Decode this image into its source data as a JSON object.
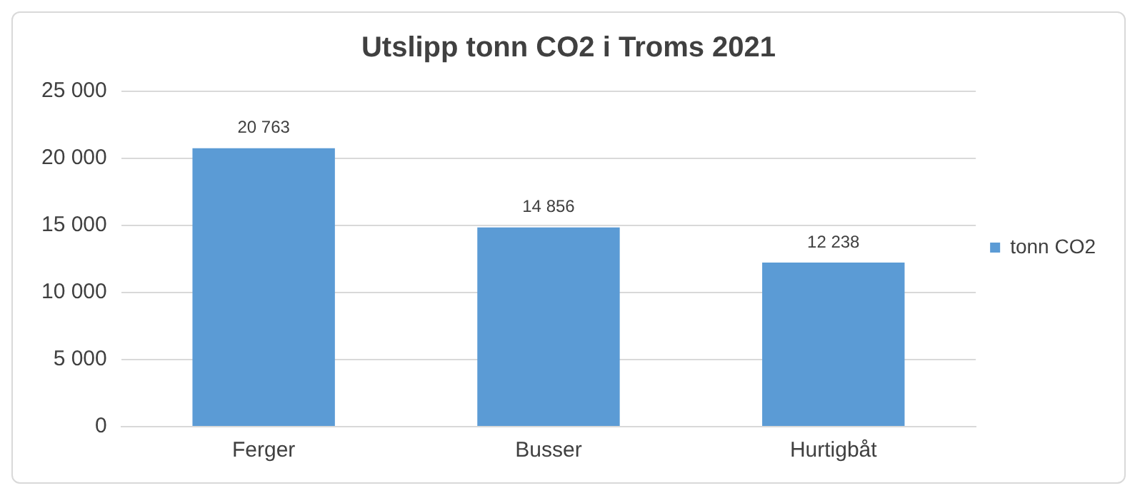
{
  "chart_data": {
    "type": "bar",
    "title": "Utslipp tonn CO2 i Troms 2021",
    "categories": [
      "Ferger",
      "Busser",
      "Hurtigbåt"
    ],
    "series": [
      {
        "name": "tonn CO2",
        "color": "#5b9bd5",
        "values": [
          20763,
          14856,
          12238
        ],
        "value_labels": [
          "20 763",
          "14 856",
          "12 238"
        ]
      }
    ],
    "ylim": [
      0,
      25000
    ],
    "yticks": [
      {
        "value": 0,
        "label": "0"
      },
      {
        "value": 5000,
        "label": "5 000"
      },
      {
        "value": 10000,
        "label": "10 000"
      },
      {
        "value": 15000,
        "label": "15 000"
      },
      {
        "value": 20000,
        "label": "20 000"
      },
      {
        "value": 25000,
        "label": "25 000"
      }
    ],
    "grid": "y",
    "legend": "right"
  }
}
